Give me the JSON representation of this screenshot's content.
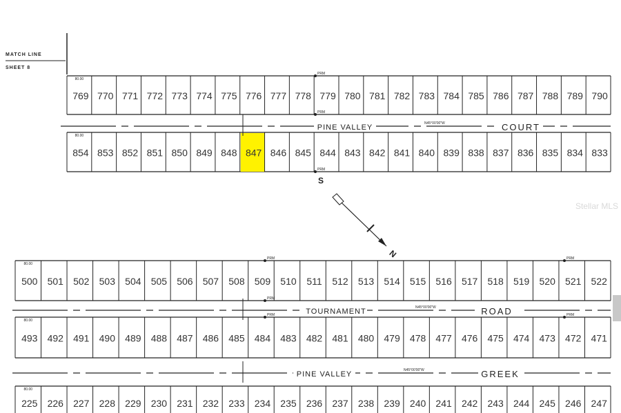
{
  "match_line": {
    "line1": "MATCH LINE",
    "line2": "SHEET 8"
  },
  "highlight_lot": "847",
  "highlight_color": "#fff200",
  "rows": [
    {
      "lots": [
        "769",
        "770",
        "771",
        "772",
        "773",
        "774",
        "775",
        "776",
        "777",
        "778",
        "779",
        "780",
        "781",
        "782",
        "783",
        "784",
        "785",
        "786",
        "787",
        "788",
        "789",
        "790"
      ]
    },
    {
      "lots": [
        "854",
        "853",
        "852",
        "851",
        "850",
        "849",
        "848",
        "847",
        "846",
        "845",
        "844",
        "843",
        "842",
        "841",
        "840",
        "839",
        "838",
        "837",
        "836",
        "835",
        "834",
        "833"
      ]
    },
    {
      "lots": [
        "500",
        "501",
        "502",
        "503",
        "504",
        "505",
        "506",
        "507",
        "508",
        "509",
        "510",
        "511",
        "512",
        "513",
        "514",
        "515",
        "516",
        "517",
        "518",
        "519",
        "520",
        "521",
        "522"
      ]
    },
    {
      "lots": [
        "493",
        "492",
        "491",
        "490",
        "489",
        "488",
        "487",
        "486",
        "485",
        "484",
        "483",
        "482",
        "481",
        "480",
        "479",
        "478",
        "477",
        "476",
        "475",
        "474",
        "473",
        "472",
        "471"
      ]
    },
    {
      "lots": [
        "225",
        "226",
        "227",
        "228",
        "229",
        "230",
        "231",
        "232",
        "233",
        "234",
        "235",
        "236",
        "237",
        "238",
        "239",
        "240",
        "241",
        "242",
        "243",
        "244",
        "245",
        "246",
        "247"
      ]
    }
  ],
  "streets": [
    {
      "name": "PINE VALLEY",
      "suffix": "COURT",
      "bearing": "N45°00'00\"W"
    },
    {
      "name": "TOURNAMENT",
      "suffix": "ROAD",
      "bearing": "N45°00'00\"W"
    },
    {
      "name": "PINE VALLEY",
      "suffix": "GREEK",
      "bearing": "N45°00'00\"W"
    }
  ],
  "markers": {
    "prm": "PRM",
    "dim": "80.00"
  },
  "compass": {
    "south": "S",
    "north": "N"
  },
  "watermark": "Stellar MLS"
}
